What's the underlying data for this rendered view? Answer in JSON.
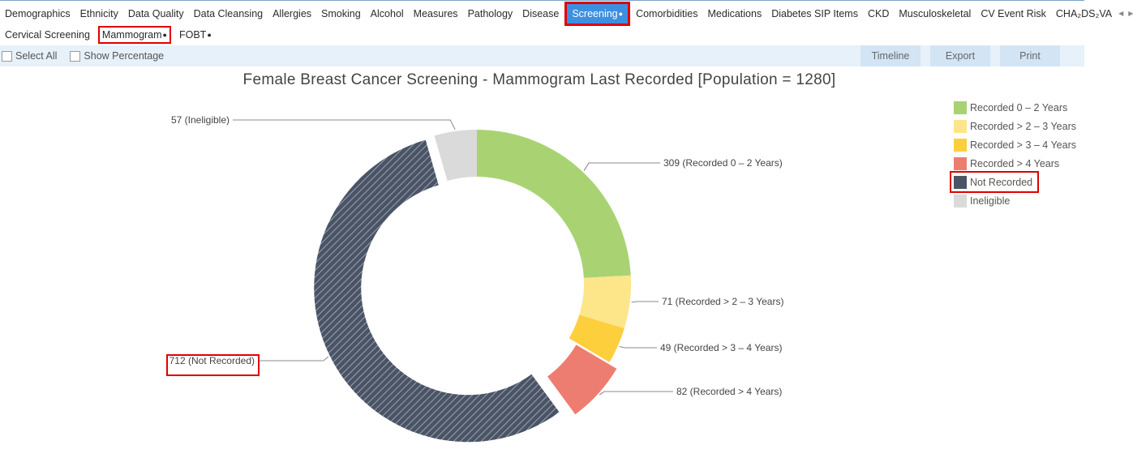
{
  "top_tabs": [
    {
      "label": "Demographics",
      "active": false,
      "dot": false
    },
    {
      "label": "Ethnicity",
      "active": false,
      "dot": false
    },
    {
      "label": "Data Quality",
      "active": false,
      "dot": false
    },
    {
      "label": "Data Cleansing",
      "active": false,
      "dot": false
    },
    {
      "label": "Allergies",
      "active": false,
      "dot": false
    },
    {
      "label": "Smoking",
      "active": false,
      "dot": false
    },
    {
      "label": "Alcohol",
      "active": false,
      "dot": false
    },
    {
      "label": "Measures",
      "active": false,
      "dot": false
    },
    {
      "label": "Pathology",
      "active": false,
      "dot": false
    },
    {
      "label": "Disease",
      "active": false,
      "dot": false
    },
    {
      "label": "Screening",
      "active": true,
      "dot": true
    },
    {
      "label": "Comorbidities",
      "active": false,
      "dot": false
    },
    {
      "label": "Medications",
      "active": false,
      "dot": false
    },
    {
      "label": "Diabetes SIP Items",
      "active": false,
      "dot": false
    },
    {
      "label": "CKD",
      "active": false,
      "dot": false
    },
    {
      "label": "Musculoskeletal",
      "active": false,
      "dot": false
    },
    {
      "label": "CV Event Risk",
      "active": false,
      "dot": false
    },
    {
      "label": "CHA₂DS₂VA",
      "active": false,
      "dot": false
    }
  ],
  "sub_tabs": [
    {
      "label": "Cervical Screening",
      "active": false,
      "dot": false
    },
    {
      "label": "Mammogram",
      "active": true,
      "dot": true
    },
    {
      "label": "FOBT",
      "active": false,
      "dot": true
    }
  ],
  "toolbar": {
    "select_all": "Select All",
    "show_percentage": "Show Percentage",
    "timeline": "Timeline",
    "export": "Export",
    "print": "Print"
  },
  "chart_data": {
    "type": "pie",
    "variant": "donut",
    "title": "Female Breast Cancer Screening - Mammogram Last Recorded [Population = 1280]",
    "legend_position": "top-right",
    "slices": [
      {
        "name": "Recorded 0 – 2 Years",
        "value": 309,
        "label": "309 (Recorded 0 – 2 Years)",
        "color": "#a9d373",
        "exploded": false,
        "hatched": false
      },
      {
        "name": "Recorded > 2 – 3 Years",
        "value": 71,
        "label": "71 (Recorded > 2 – 3 Years)",
        "color": "#fde58a",
        "exploded": false,
        "hatched": false
      },
      {
        "name": "Recorded > 3 – 4 Years",
        "value": 49,
        "label": "49 (Recorded > 3 – 4 Years)",
        "color": "#fecf3c",
        "exploded": false,
        "hatched": false
      },
      {
        "name": "Recorded > 4 Years",
        "value": 82,
        "label": "82 (Recorded > 4 Years)",
        "color": "#ee7d71",
        "exploded": true,
        "hatched": false
      },
      {
        "name": "Not Recorded",
        "value": 712,
        "label": "712 (Not Recorded)",
        "color": "#4b5465",
        "exploded": true,
        "hatched": true,
        "highlighted": true
      },
      {
        "name": "Ineligible",
        "value": 57,
        "label": "57 (Ineligible)",
        "color": "#dadada",
        "exploded": false,
        "hatched": false
      }
    ],
    "legend": [
      {
        "label": "Recorded 0 – 2 Years",
        "color": "#a9d373"
      },
      {
        "label": "Recorded > 2 – 3 Years",
        "color": "#fde58a"
      },
      {
        "label": "Recorded > 3 – 4 Years",
        "color": "#fecf3c"
      },
      {
        "label": "Recorded > 4 Years",
        "color": "#ee7d71"
      },
      {
        "label": "Not Recorded",
        "color": "#4b5465",
        "highlighted": true
      },
      {
        "label": "Ineligible",
        "color": "#dadada"
      }
    ]
  }
}
